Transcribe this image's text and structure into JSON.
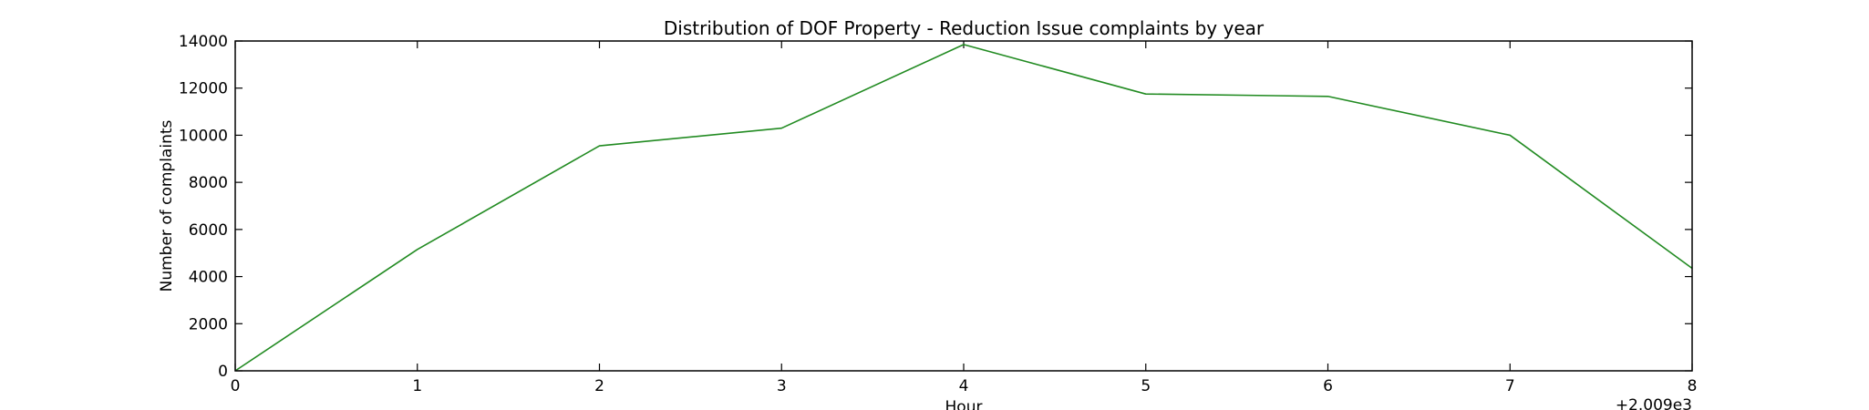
{
  "chart_data": {
    "type": "line",
    "title": "Distribution of  DOF Property - Reduction Issue complaints by year",
    "xlabel": "Hour",
    "ylabel": "Number of complaints",
    "x_offset_label": "+2.009e3",
    "xlim": [
      0,
      8
    ],
    "ylim": [
      0,
      14000
    ],
    "x_ticks": [
      0,
      1,
      2,
      3,
      4,
      5,
      6,
      7,
      8
    ],
    "y_ticks": [
      0,
      2000,
      4000,
      6000,
      8000,
      10000,
      12000,
      14000
    ],
    "x_tick_labels": [
      "0",
      "1",
      "2",
      "3",
      "4",
      "5",
      "6",
      "7",
      "8"
    ],
    "y_tick_labels": [
      "0",
      "2000",
      "4000",
      "6000",
      "8000",
      "10000",
      "12000",
      "14000"
    ],
    "grid": false,
    "series": [
      {
        "color": "#228B22",
        "x": [
          0,
          1,
          2,
          3,
          4,
          5,
          6,
          7,
          8
        ],
        "y": [
          0,
          5150,
          9550,
          10300,
          13850,
          11750,
          11650,
          10000,
          4350
        ]
      }
    ]
  }
}
